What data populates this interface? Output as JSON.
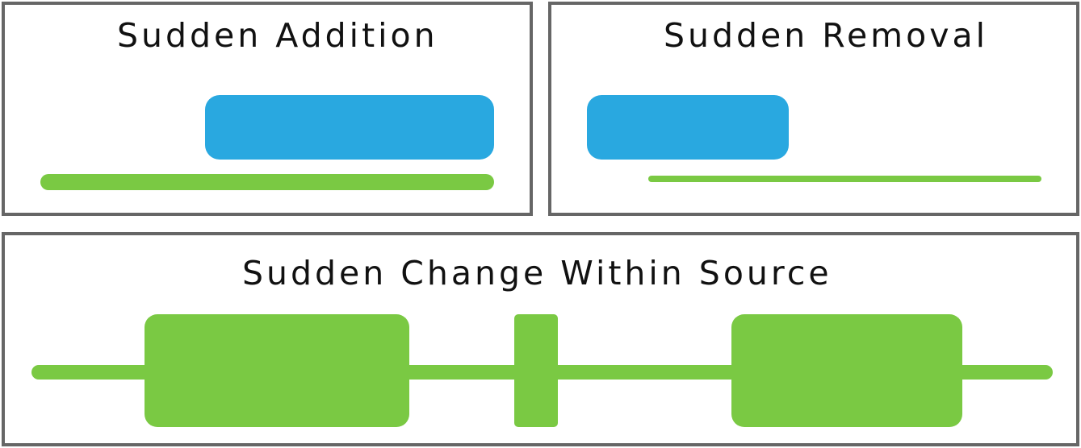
{
  "colors": {
    "addition": "#29a8e0",
    "source": "#7ac943",
    "border": "#666666"
  },
  "panels": {
    "addition": {
      "title": "Sudden Addition"
    },
    "removal": {
      "title": "Sudden Removal"
    },
    "change": {
      "title": "Sudden Change Within Source"
    }
  }
}
